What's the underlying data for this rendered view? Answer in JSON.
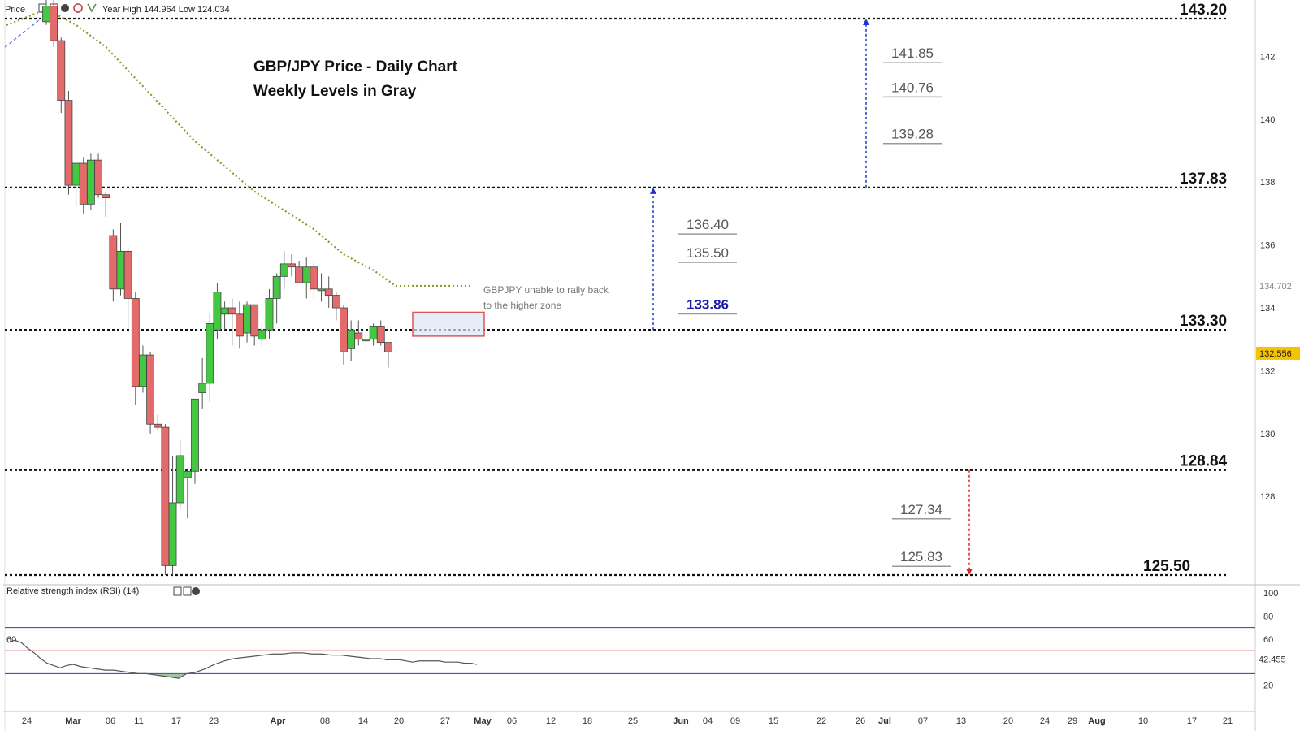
{
  "header": {
    "price_label": "Price",
    "info": "Year High 144.964 Low 124.034"
  },
  "rsi_header": {
    "label": "Relative strength index (RSI) (14)"
  },
  "colors": {
    "bull": "#44c844",
    "bear": "#e46b6b",
    "sma": "#8a9a2a",
    "rsi_line": "#555555",
    "rsi_fill": "#4a9a4a",
    "rsi_band": "#3333cc",
    "rsi_mid": "#e09090",
    "dotted": "#111111",
    "arrow_blue": "#2233cc",
    "arrow_red": "#dd2222"
  },
  "chart_data": [
    {
      "type": "line",
      "title": "GBP/JPY Price - Daily Chart",
      "subtitle": "Weekly Levels in Gray",
      "ylim": [
        125.5,
        144.2
      ],
      "y_ticks": [
        "142",
        "140",
        "138",
        "136",
        "134",
        "132",
        "130",
        "128"
      ],
      "x_ticks": [
        "24",
        "Mar",
        "06",
        "11",
        "17",
        "23",
        "Apr",
        "08",
        "14",
        "20",
        "27",
        "May",
        "06",
        "12",
        "18",
        "25",
        "Jun",
        "04",
        "09",
        "15",
        "22",
        "26",
        "Jul",
        "07",
        "13",
        "20",
        "24",
        "29",
        "Aug",
        "10",
        "17",
        "21"
      ],
      "candles": [
        {
          "o": 143.1,
          "h": 144.5,
          "l": 143.0,
          "c": 143.6
        },
        {
          "o": 143.6,
          "h": 144.2,
          "l": 142.3,
          "c": 142.5
        },
        {
          "o": 142.5,
          "h": 142.6,
          "l": 140.2,
          "c": 140.6
        },
        {
          "o": 140.6,
          "h": 140.9,
          "l": 137.6,
          "c": 137.9
        },
        {
          "o": 137.9,
          "h": 138.6,
          "l": 137.2,
          "c": 138.6
        },
        {
          "o": 138.6,
          "h": 138.8,
          "l": 137.0,
          "c": 137.3
        },
        {
          "o": 137.3,
          "h": 138.9,
          "l": 137.1,
          "c": 138.7
        },
        {
          "o": 138.7,
          "h": 138.9,
          "l": 137.5,
          "c": 137.6
        },
        {
          "o": 137.6,
          "h": 137.7,
          "l": 136.9,
          "c": 137.5
        },
        {
          "o": 136.3,
          "h": 136.5,
          "l": 134.2,
          "c": 134.6
        },
        {
          "o": 134.6,
          "h": 136.7,
          "l": 134.4,
          "c": 135.8
        },
        {
          "o": 135.8,
          "h": 135.9,
          "l": 133.3,
          "c": 134.3
        },
        {
          "o": 134.3,
          "h": 134.5,
          "l": 130.9,
          "c": 131.5
        },
        {
          "o": 131.5,
          "h": 132.8,
          "l": 131.3,
          "c": 132.5
        },
        {
          "o": 132.5,
          "h": 132.6,
          "l": 130.0,
          "c": 130.3
        },
        {
          "o": 130.3,
          "h": 130.6,
          "l": 130.1,
          "c": 130.2
        },
        {
          "o": 130.2,
          "h": 130.3,
          "l": 125.5,
          "c": 125.8
        },
        {
          "o": 125.8,
          "h": 129.3,
          "l": 125.5,
          "c": 127.8
        },
        {
          "o": 127.8,
          "h": 129.8,
          "l": 127.6,
          "c": 129.3
        },
        {
          "o": 128.6,
          "h": 128.8,
          "l": 127.3,
          "c": 128.8
        },
        {
          "o": 128.8,
          "h": 131.1,
          "l": 128.4,
          "c": 131.1
        },
        {
          "o": 131.3,
          "h": 132.4,
          "l": 130.8,
          "c": 131.6
        },
        {
          "o": 131.6,
          "h": 133.8,
          "l": 131.0,
          "c": 133.5
        },
        {
          "o": 133.3,
          "h": 134.8,
          "l": 133.0,
          "c": 134.5
        },
        {
          "o": 133.8,
          "h": 134.2,
          "l": 133.3,
          "c": 134.0
        },
        {
          "o": 134.0,
          "h": 134.3,
          "l": 132.8,
          "c": 133.8
        },
        {
          "o": 133.8,
          "h": 134.2,
          "l": 132.7,
          "c": 133.1
        },
        {
          "o": 133.2,
          "h": 134.2,
          "l": 132.9,
          "c": 134.1
        },
        {
          "o": 134.1,
          "h": 134.1,
          "l": 132.8,
          "c": 133.1
        },
        {
          "o": 133.0,
          "h": 133.4,
          "l": 132.8,
          "c": 133.3
        },
        {
          "o": 133.3,
          "h": 134.6,
          "l": 133.0,
          "c": 134.3
        },
        {
          "o": 134.3,
          "h": 135.1,
          "l": 133.5,
          "c": 135.0
        },
        {
          "o": 135.0,
          "h": 135.8,
          "l": 134.6,
          "c": 135.4
        },
        {
          "o": 135.4,
          "h": 135.7,
          "l": 135.0,
          "c": 135.3
        },
        {
          "o": 135.3,
          "h": 135.5,
          "l": 134.8,
          "c": 134.8
        },
        {
          "o": 134.8,
          "h": 135.6,
          "l": 134.3,
          "c": 135.3
        },
        {
          "o": 135.3,
          "h": 135.5,
          "l": 134.3,
          "c": 134.6
        },
        {
          "o": 134.6,
          "h": 135.1,
          "l": 134.2,
          "c": 134.6
        },
        {
          "o": 134.6,
          "h": 135.0,
          "l": 134.0,
          "c": 134.4
        },
        {
          "o": 134.4,
          "h": 134.5,
          "l": 133.6,
          "c": 134.0
        },
        {
          "o": 134.0,
          "h": 134.1,
          "l": 132.2,
          "c": 132.6
        },
        {
          "o": 132.7,
          "h": 133.6,
          "l": 132.3,
          "c": 133.3
        },
        {
          "o": 133.2,
          "h": 133.6,
          "l": 132.8,
          "c": 133.0
        },
        {
          "o": 133.0,
          "h": 133.3,
          "l": 132.6,
          "c": 133.0
        },
        {
          "o": 133.0,
          "h": 133.5,
          "l": 132.8,
          "c": 133.4
        },
        {
          "o": 133.4,
          "h": 133.6,
          "l": 132.8,
          "c": 132.9
        },
        {
          "o": 132.9,
          "h": 132.9,
          "l": 132.1,
          "c": 132.6
        }
      ],
      "sma": [
        {
          "i": 0,
          "y": 143.5
        },
        {
          "i": 4,
          "y": 143.0
        },
        {
          "i": 8,
          "y": 142.3
        },
        {
          "i": 12,
          "y": 141.3
        },
        {
          "i": 16,
          "y": 140.3
        },
        {
          "i": 20,
          "y": 139.3
        },
        {
          "i": 24,
          "y": 138.5
        },
        {
          "i": 28,
          "y": 137.7
        },
        {
          "i": 32,
          "y": 137.1
        },
        {
          "i": 36,
          "y": 136.5
        },
        {
          "i": 40,
          "y": 135.7
        },
        {
          "i": 44,
          "y": 135.2
        },
        {
          "i": 47,
          "y": 134.7
        }
      ],
      "major_levels": [
        {
          "value": 143.2,
          "label": "143.20"
        },
        {
          "value": 137.83,
          "label": "137.83"
        },
        {
          "value": 133.3,
          "label": "133.30"
        },
        {
          "value": 128.84,
          "label": "128.84"
        },
        {
          "value": 125.5,
          "label": "125.50"
        }
      ],
      "minor_levels": [
        {
          "value": 141.85,
          "label": "141.85"
        },
        {
          "value": 140.76,
          "label": "140.76"
        },
        {
          "value": 139.28,
          "label": "139.28"
        },
        {
          "value": 136.4,
          "label": "136.40"
        },
        {
          "value": 135.5,
          "label": "135.50"
        },
        {
          "value": 133.86,
          "label": "133.86",
          "highlight": true
        },
        {
          "value": 127.34,
          "label": "127.34"
        },
        {
          "value": 125.83,
          "label": "125.83"
        }
      ],
      "price_tags": [
        {
          "value": 134.702,
          "label": "134.702"
        },
        {
          "value": 132.556,
          "label": "132.556"
        }
      ],
      "annotation": [
        "GBPJPY unable to rally back",
        "to the higher zone"
      ]
    },
    {
      "type": "line",
      "title": "Relative strength index (RSI) (14)",
      "ylim": [
        0,
        100
      ],
      "y_ticks": [
        "100",
        "80",
        "60",
        "20"
      ],
      "bands": [
        30,
        50,
        70
      ],
      "current_label": "42.455",
      "left_label": "60",
      "values": [
        57,
        59,
        57,
        52,
        48,
        43,
        39,
        37,
        35,
        37,
        38,
        36,
        35,
        34,
        33,
        33,
        32,
        31,
        30,
        30,
        29,
        28,
        27,
        26,
        30,
        31,
        34,
        38,
        41,
        43,
        44,
        45,
        46,
        47,
        47,
        48,
        48,
        47,
        47,
        46,
        46,
        45,
        44,
        43,
        43,
        42,
        42,
        42,
        41,
        40,
        41,
        41,
        41,
        41,
        40,
        40,
        40,
        39,
        39,
        38
      ],
      "x_values": [
        10,
        18,
        26,
        34,
        42,
        50,
        58,
        66,
        74,
        82,
        90,
        100,
        110,
        120,
        130,
        140,
        150,
        160,
        170,
        180,
        190,
        200,
        210,
        220,
        230,
        240,
        252,
        264,
        276,
        288,
        300,
        312,
        324,
        336,
        348,
        360,
        372,
        384,
        396,
        408,
        420,
        432,
        444,
        456,
        468,
        476,
        484,
        492,
        500,
        508,
        516,
        524,
        532,
        540,
        548,
        556,
        564,
        572,
        580,
        587
      ]
    }
  ]
}
